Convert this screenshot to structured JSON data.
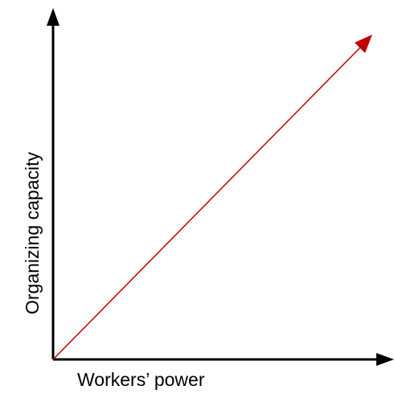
{
  "axes": {
    "x_label": "Workers’ power",
    "y_label": "Organizing capacity"
  }
}
